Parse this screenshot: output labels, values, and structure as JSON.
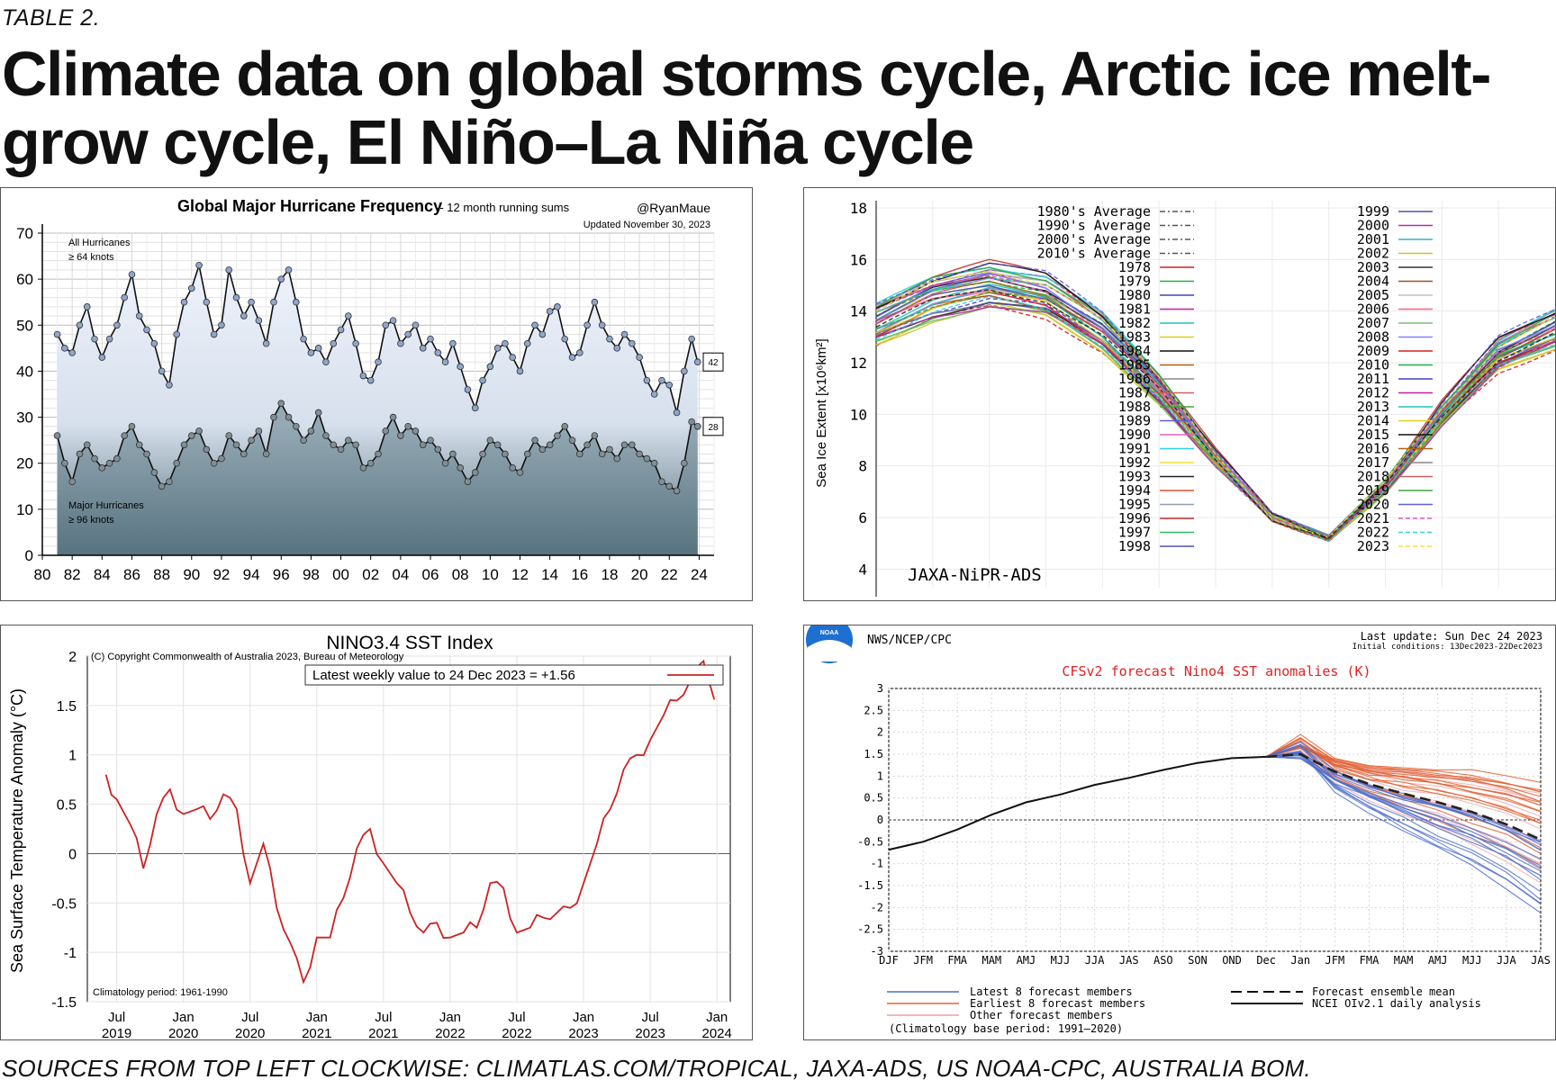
{
  "header": {
    "kicker": "TABLE 2.",
    "title": "Climate data on global storms cycle, Arctic ice melt-grow cycle, El Niño–La Niña cycle"
  },
  "footer": {
    "sources": "SOURCES FROM TOP LEFT CLOCKWISE: CLIMATLAS.COM/TROPICAL, JAXA-ADS, US NOAA-CPC, AUSTRALIA BOM."
  },
  "chart_data": [
    {
      "id": "hurricanes",
      "type": "line",
      "title": "Global Major Hurricane Frequency",
      "subtitle": "-- 12 month running sums",
      "credit": "@RyanMaue",
      "updated": "Updated November 30, 2023",
      "label_all": [
        "All Hurricanes",
        "≥ 64 knots"
      ],
      "label_major": [
        "Major Hurricanes",
        "≥ 96 knots"
      ],
      "xlim": [
        1980,
        2025
      ],
      "ylim": [
        0,
        70
      ],
      "yticks": [
        0,
        10,
        20,
        30,
        40,
        50,
        60,
        70
      ],
      "xtick_labels": [
        "80",
        "82",
        "84",
        "86",
        "88",
        "90",
        "92",
        "94",
        "96",
        "98",
        "00",
        "02",
        "04",
        "06",
        "08",
        "10",
        "12",
        "14",
        "16",
        "18",
        "20",
        "22",
        "24"
      ],
      "end_labels": [
        "42",
        "28"
      ],
      "series": [
        {
          "name": "All Hurricanes",
          "x": [
            1981,
            1981.5,
            1982,
            1982.5,
            1983,
            1983.5,
            1984,
            1984.5,
            1985,
            1985.5,
            1986,
            1986.5,
            1987,
            1987.5,
            1988,
            1988.5,
            1989,
            1989.5,
            1990,
            1990.5,
            1991,
            1991.5,
            1992,
            1992.5,
            1993,
            1993.5,
            1994,
            1994.5,
            1995,
            1995.5,
            1996,
            1996.5,
            1997,
            1997.5,
            1998,
            1998.5,
            1999,
            1999.5,
            2000,
            2000.5,
            2001,
            2001.5,
            2002,
            2002.5,
            2003,
            2003.5,
            2004,
            2004.5,
            2005,
            2005.5,
            2006,
            2006.5,
            2007,
            2007.5,
            2008,
            2008.5,
            2009,
            2009.5,
            2010,
            2010.5,
            2011,
            2011.5,
            2012,
            2012.5,
            2013,
            2013.5,
            2014,
            2014.5,
            2015,
            2015.5,
            2016,
            2016.5,
            2017,
            2017.5,
            2018,
            2018.5,
            2019,
            2019.5,
            2020,
            2020.5,
            2021,
            2021.5,
            2022,
            2022.5,
            2023,
            2023.5,
            2023.9
          ],
          "y": [
            48,
            45,
            44,
            50,
            54,
            47,
            43,
            47,
            50,
            56,
            61,
            52,
            49,
            46,
            40,
            37,
            48,
            55,
            58,
            63,
            55,
            48,
            50,
            62,
            56,
            52,
            55,
            51,
            46,
            55,
            60,
            62,
            55,
            47,
            44,
            45,
            42,
            46,
            49,
            52,
            46,
            39,
            38,
            42,
            50,
            51,
            46,
            48,
            50,
            45,
            47,
            44,
            42,
            46,
            41,
            36,
            32,
            38,
            41,
            45,
            46,
            43,
            40,
            46,
            50,
            48,
            53,
            54,
            47,
            43,
            44,
            50,
            55,
            50,
            47,
            45,
            48,
            46,
            43,
            38,
            35,
            38,
            37,
            31,
            40,
            47,
            42
          ]
        },
        {
          "name": "Major Hurricanes",
          "x": [
            1981,
            1981.5,
            1982,
            1982.5,
            1983,
            1983.5,
            1984,
            1984.5,
            1985,
            1985.5,
            1986,
            1986.5,
            1987,
            1987.5,
            1988,
            1988.5,
            1989,
            1989.5,
            1990,
            1990.5,
            1991,
            1991.5,
            1992,
            1992.5,
            1993,
            1993.5,
            1994,
            1994.5,
            1995,
            1995.5,
            1996,
            1996.5,
            1997,
            1997.5,
            1998,
            1998.5,
            1999,
            1999.5,
            2000,
            2000.5,
            2001,
            2001.5,
            2002,
            2002.5,
            2003,
            2003.5,
            2004,
            2004.5,
            2005,
            2005.5,
            2006,
            2006.5,
            2007,
            2007.5,
            2008,
            2008.5,
            2009,
            2009.5,
            2010,
            2010.5,
            2011,
            2011.5,
            2012,
            2012.5,
            2013,
            2013.5,
            2014,
            2014.5,
            2015,
            2015.5,
            2016,
            2016.5,
            2017,
            2017.5,
            2018,
            2018.5,
            2019,
            2019.5,
            2020,
            2020.5,
            2021,
            2021.5,
            2022,
            2022.5,
            2023,
            2023.5,
            2023.9
          ],
          "y": [
            26,
            20,
            16,
            22,
            24,
            21,
            19,
            20,
            21,
            26,
            28,
            24,
            22,
            18,
            15,
            16,
            20,
            24,
            26,
            27,
            23,
            20,
            21,
            26,
            24,
            22,
            25,
            27,
            22,
            30,
            33,
            30,
            28,
            25,
            27,
            31,
            26,
            24,
            23,
            25,
            24,
            19,
            20,
            22,
            27,
            30,
            26,
            28,
            27,
            24,
            25,
            23,
            20,
            22,
            19,
            16,
            18,
            22,
            25,
            24,
            22,
            19,
            18,
            22,
            25,
            23,
            24,
            26,
            28,
            25,
            22,
            24,
            26,
            22,
            23,
            21,
            24,
            24,
            22,
            21,
            20,
            16,
            15,
            14,
            20,
            29,
            28
          ]
        }
      ]
    },
    {
      "id": "sea-ice",
      "type": "line",
      "ylabel": "Sea Ice Extent [x10⁶km²]",
      "credit": "JAXA-NiPR-ADS",
      "ylim": [
        3,
        18
      ],
      "yticks": [
        4,
        6,
        8,
        10,
        12,
        14,
        16,
        18
      ],
      "legend_left": [
        "1980's Average",
        "1990's Average",
        "2000's Average",
        "2010's Average",
        "1978",
        "1979",
        "1980",
        "1981",
        "1982",
        "1983",
        "1984",
        "1985",
        "1986",
        "1987",
        "1988",
        "1989",
        "1990",
        "1991",
        "1992",
        "1993",
        "1994",
        "1995",
        "1996",
        "1997",
        "1998"
      ],
      "legend_right": [
        "1999",
        "2000",
        "2001",
        "2002",
        "2003",
        "2004",
        "2005",
        "2006",
        "2007",
        "2008",
        "2009",
        "2010",
        "2011",
        "2012",
        "2013",
        "2014",
        "2015",
        "2016",
        "2017",
        "2018",
        "2019",
        "2020",
        "2021",
        "2022",
        "2023"
      ],
      "seasonal_cycle_mean": [
        13.5,
        14.5,
        15.0,
        14.6,
        13.2,
        11.0,
        8.3,
        6.0,
        5.2,
        7.2,
        10.0,
        12.3,
        13.3
      ]
    },
    {
      "id": "nino34",
      "type": "line",
      "title": "NINO3.4 SST Index",
      "copyright": "(C) Copyright Commonwealth of Australia 2023, Bureau of Meteorology",
      "legend": "Latest weekly value to 24 Dec 2023 = +1.56",
      "ylabel": "Sea Surface Temperature Anomaly (°C)",
      "footnote": "Climatology period: 1961-1990",
      "ylim": [
        -1.5,
        2
      ],
      "yticks": [
        "2",
        "1.5",
        "1",
        "0.5",
        "0",
        "-0.5",
        "-1",
        "-1.5"
      ],
      "xticks": [
        [
          "Jul",
          "2019"
        ],
        [
          "Jan",
          "2020"
        ],
        [
          "Jul",
          "2020"
        ],
        [
          "Jan",
          "2021"
        ],
        [
          "Jul",
          "2021"
        ],
        [
          "Jan",
          "2022"
        ],
        [
          "Jul",
          "2022"
        ],
        [
          "Jan",
          "2023"
        ],
        [
          "Jul",
          "2023"
        ],
        [
          "Jan",
          "2024"
        ]
      ],
      "series": [
        {
          "name": "NINO3.4 weekly",
          "x": [
            2019.42,
            2019.5,
            2019.6,
            2019.7,
            2019.8,
            2019.9,
            2020.0,
            2020.1,
            2020.2,
            2020.3,
            2020.4,
            2020.5,
            2020.6,
            2020.7,
            2020.8,
            2020.9,
            2021.0,
            2021.1,
            2021.2,
            2021.3,
            2021.4,
            2021.5,
            2021.6,
            2021.7,
            2021.8,
            2021.9,
            2022.0,
            2022.1,
            2022.2,
            2022.3,
            2022.4,
            2022.5,
            2022.6,
            2022.7,
            2022.8,
            2022.9,
            2023.0,
            2023.1,
            2023.2,
            2023.3,
            2023.4,
            2023.5,
            2023.6,
            2023.7,
            2023.8,
            2023.9,
            2023.95,
            2023.98
          ],
          "y": [
            0.8,
            0.55,
            0.3,
            -0.15,
            0.4,
            0.65,
            0.4,
            0.45,
            0.35,
            0.6,
            0.45,
            -0.3,
            0.1,
            -0.55,
            -0.9,
            -1.3,
            -0.85,
            -0.85,
            -0.45,
            0.05,
            0.25,
            -0.1,
            -0.3,
            -0.6,
            -0.8,
            -0.7,
            -0.85,
            -0.8,
            -0.75,
            -0.3,
            -0.35,
            -0.8,
            -0.75,
            -0.65,
            -0.6,
            -0.55,
            -0.3,
            0.1,
            0.45,
            0.85,
            1.0,
            1.15,
            1.4,
            1.55,
            1.75,
            1.95,
            1.7,
            1.56
          ]
        }
      ]
    },
    {
      "id": "cfsv2-nino4",
      "type": "line",
      "source": "NWS/NCEP/CPC",
      "last_update": "Last update: Sun Dec 24 2023",
      "initial_conditions": "Initial conditions: 13Dec2023-22Dec2023",
      "title": "CFSv2 forecast Nino4 SST anomalies (K)",
      "logo_text": "NOAA",
      "ylim": [
        -3,
        3
      ],
      "yticks": [
        "3",
        "2.5",
        "2",
        "1.5",
        "1",
        "0.5",
        "0",
        "-0.5",
        "-1",
        "-1.5",
        "-2",
        "-2.5",
        "-3"
      ],
      "xticks": [
        "DJF",
        "JFM",
        "FMA",
        "MAM",
        "AMJ",
        "MJJ",
        "JJA",
        "JAS",
        "ASO",
        "SON",
        "OND",
        "Dec",
        "Jan",
        "JFM",
        "FMA",
        "MAM",
        "AMJ",
        "MJJ",
        "JJA",
        "JAS"
      ],
      "legend": [
        "Latest 8 forecast members",
        "Earliest 8 forecast members",
        "Other forecast members",
        "Forecast ensemble mean",
        "NCEI OIv2.1 daily analysis"
      ],
      "footnote": "(Climatology base period: 1991—2020)",
      "colors": {
        "latest": "#4a6fd0",
        "earliest": "#e06030",
        "other": "#e8a0a0",
        "mean": "#222222",
        "analysis": "#111111"
      },
      "series": [
        {
          "name": "NCEI OIv2.1 daily analysis",
          "x": [
            0,
            1,
            2,
            3,
            4,
            5,
            6,
            7,
            8,
            9,
            10,
            11
          ],
          "y": [
            -0.68,
            -0.5,
            -0.22,
            0.12,
            0.4,
            0.58,
            0.8,
            0.96,
            1.14,
            1.3,
            1.41,
            1.44
          ]
        },
        {
          "name": "Forecast ensemble mean",
          "x": [
            11,
            12,
            13,
            14,
            15,
            16,
            17,
            18,
            19
          ],
          "y": [
            1.44,
            1.5,
            1.1,
            0.82,
            0.6,
            0.4,
            0.18,
            -0.1,
            -0.45
          ]
        }
      ]
    }
  ]
}
